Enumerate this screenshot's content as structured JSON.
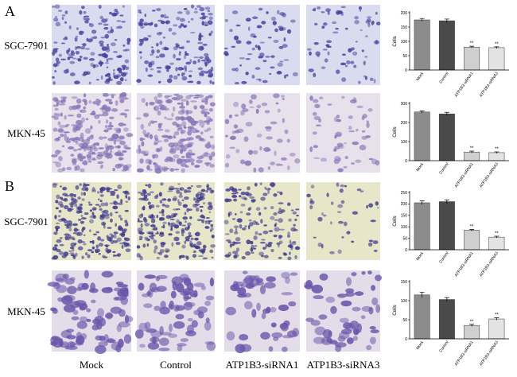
{
  "panels": [
    "A",
    "B"
  ],
  "row_labels": [
    "SGC-7901",
    "MKN-45",
    "SGC-7901",
    "MKN-45"
  ],
  "column_labels": [
    "Mock",
    "Control",
    "ATP1B3-siRNA1",
    "ATP1B3-siRNA3"
  ],
  "chart_data": [
    {
      "type": "bar",
      "ylabel": "Cells",
      "categories": [
        "Mock",
        "Control",
        "ATP1B3-siRNA1",
        "ATP1B3-siRNA3"
      ],
      "values": [
        175,
        172,
        80,
        78
      ],
      "errors": [
        5,
        6,
        3,
        3
      ],
      "significance": [
        null,
        null,
        "**",
        "**"
      ],
      "ylim": [
        0,
        200
      ],
      "yticks": [
        0,
        50,
        100,
        150,
        200
      ],
      "colors": [
        "#8c8c8c",
        "#4a4a4a",
        "#cfcfcf",
        "#e3e3e3"
      ]
    },
    {
      "type": "bar",
      "ylabel": "Cells",
      "categories": [
        "Mock",
        "Control",
        "ATP1B3-siRNA1",
        "ATP1B3-siRNA3"
      ],
      "values": [
        255,
        245,
        45,
        42
      ],
      "errors": [
        6,
        8,
        5,
        4
      ],
      "significance": [
        null,
        null,
        "**",
        "**"
      ],
      "ylim": [
        0,
        300
      ],
      "yticks": [
        0,
        100,
        200,
        300
      ],
      "colors": [
        "#8c8c8c",
        "#4a4a4a",
        "#cfcfcf",
        "#e3e3e3"
      ]
    },
    {
      "type": "bar",
      "ylabel": "Cells",
      "categories": [
        "Mock",
        "Control",
        "ATP1B3-siRNA1",
        "ATP1B3-siRNA3"
      ],
      "values": [
        205,
        210,
        85,
        55
      ],
      "errors": [
        8,
        8,
        4,
        4
      ],
      "significance": [
        null,
        null,
        "**",
        "**"
      ],
      "ylim": [
        0,
        250
      ],
      "yticks": [
        0,
        50,
        100,
        150,
        200,
        250
      ],
      "colors": [
        "#8c8c8c",
        "#4a4a4a",
        "#cfcfcf",
        "#e3e3e3"
      ]
    },
    {
      "type": "bar",
      "ylabel": "Cells",
      "categories": [
        "Mock",
        "Control",
        "ATP1B3-siRNA1",
        "ATP1B3-siRNA3"
      ],
      "values": [
        115,
        103,
        35,
        52
      ],
      "errors": [
        7,
        5,
        3,
        3
      ],
      "significance": [
        null,
        null,
        "**",
        "**"
      ],
      "ylim": [
        0,
        150
      ],
      "yticks": [
        0,
        50,
        100,
        150
      ],
      "colors": [
        "#8c8c8c",
        "#4a4a4a",
        "#cfcfcf",
        "#e3e3e3"
      ]
    }
  ]
}
